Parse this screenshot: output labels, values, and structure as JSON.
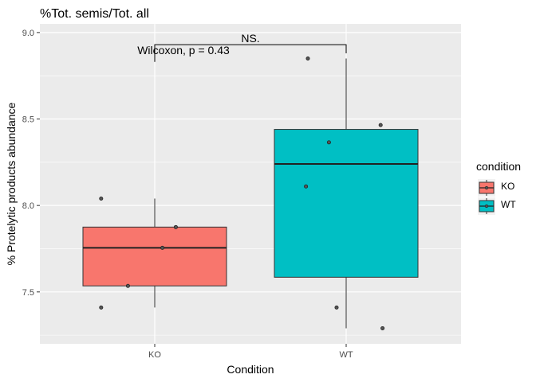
{
  "chart_data": {
    "type": "boxplot",
    "title": "%Tot. semis/Tot. all",
    "xlabel": "Condition",
    "ylabel": "% Protelytic products abundance",
    "categories": [
      "KO",
      "WT"
    ],
    "ylim": [
      7.2,
      9.05
    ],
    "yticks": [
      7.5,
      8.0,
      8.5,
      9.0
    ],
    "ytick_labels": [
      "7.5",
      "8.0",
      "8.5",
      "9.0"
    ],
    "grid": true,
    "legend": {
      "title": "condition",
      "position": "right",
      "entries": [
        {
          "label": "KO",
          "color": "#F8766D"
        },
        {
          "label": "WT",
          "color": "#00BFC4"
        }
      ]
    },
    "series": [
      {
        "category": "KO",
        "color": "#F8766D",
        "box": {
          "min": 7.41,
          "q1": 7.535,
          "median": 7.755,
          "q3": 7.875,
          "max": 8.04
        },
        "points": [
          {
            "x": 0.72,
            "y": 8.04
          },
          {
            "x": 0.72,
            "y": 7.41
          },
          {
            "x": 0.86,
            "y": 7.535
          },
          {
            "x": 1.04,
            "y": 7.755
          },
          {
            "x": 1.11,
            "y": 7.875
          }
        ]
      },
      {
        "category": "WT",
        "color": "#00BFC4",
        "box": {
          "min": 7.29,
          "q1": 7.585,
          "median": 8.24,
          "q3": 8.44,
          "max": 8.85
        },
        "points": [
          {
            "x": 1.8,
            "y": 8.85
          },
          {
            "x": 1.91,
            "y": 8.365
          },
          {
            "x": 1.79,
            "y": 8.11
          },
          {
            "x": 2.18,
            "y": 8.465
          },
          {
            "x": 1.95,
            "y": 7.41
          },
          {
            "x": 2.19,
            "y": 7.29
          }
        ]
      }
    ],
    "annotations": {
      "significance": "NS.",
      "test": "Wilcoxon, p = 0.43"
    }
  }
}
